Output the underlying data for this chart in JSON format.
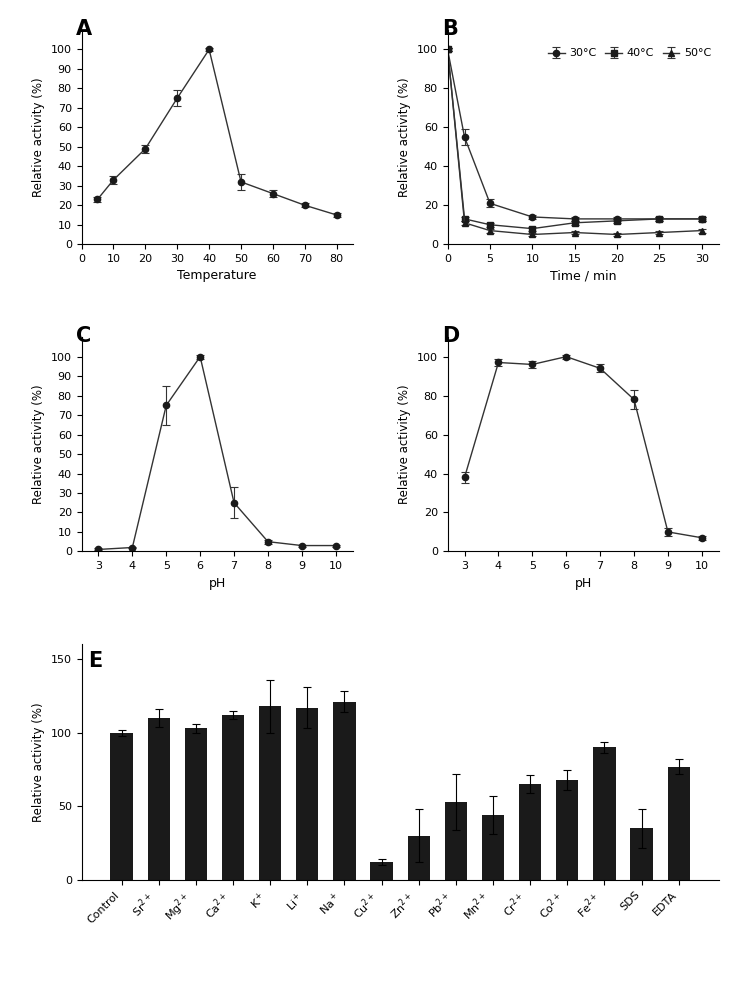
{
  "A": {
    "x": [
      5,
      10,
      20,
      30,
      40,
      50,
      60,
      70,
      80
    ],
    "y": [
      23,
      33,
      49,
      75,
      100,
      32,
      26,
      20,
      15
    ],
    "yerr": [
      1.5,
      2,
      2,
      4,
      1,
      4,
      2,
      1,
      1
    ],
    "xlabel": "Temperature",
    "ylabel": "Relative activity (%)",
    "xlim": [
      0,
      85
    ],
    "ylim": [
      0,
      110
    ],
    "xticks": [
      0,
      10,
      20,
      30,
      40,
      50,
      60,
      70,
      80
    ],
    "yticks": [
      0,
      10,
      20,
      30,
      40,
      50,
      60,
      70,
      80,
      90,
      100
    ],
    "label": "A"
  },
  "B": {
    "series": {
      "30C": {
        "x": [
          0,
          2,
          5,
          10,
          15,
          20,
          25,
          30
        ],
        "y": [
          100,
          55,
          21,
          14,
          13,
          13,
          13,
          13
        ],
        "yerr": [
          1,
          4,
          2,
          1,
          1,
          1,
          1,
          1
        ],
        "marker": "o",
        "label": "30°C"
      },
      "40C": {
        "x": [
          0,
          2,
          5,
          10,
          15,
          20,
          25,
          30
        ],
        "y": [
          100,
          13,
          10,
          8,
          11,
          12,
          13,
          13
        ],
        "yerr": [
          1,
          1,
          1,
          1,
          1,
          1,
          1,
          1
        ],
        "marker": "s",
        "label": "40°C"
      },
      "50C": {
        "x": [
          0,
          2,
          5,
          10,
          15,
          20,
          25,
          30
        ],
        "y": [
          100,
          11,
          7,
          5,
          6,
          5,
          6,
          7
        ],
        "yerr": [
          1,
          1,
          1,
          1,
          1,
          1,
          1,
          1
        ],
        "marker": "^",
        "label": "50°C"
      }
    },
    "xlabel": "Time / min",
    "ylabel": "Relative activity (%)",
    "xlim": [
      0,
      32
    ],
    "ylim": [
      0,
      110
    ],
    "xticks": [
      0,
      5,
      10,
      15,
      20,
      25,
      30
    ],
    "yticks": [
      0,
      20,
      40,
      60,
      80,
      100
    ],
    "label": "B"
  },
  "C": {
    "x": [
      3,
      4,
      5,
      6,
      7,
      8,
      9,
      10
    ],
    "y": [
      1,
      2,
      75,
      100,
      25,
      5,
      3,
      3
    ],
    "yerr": [
      0.5,
      0.5,
      10,
      1,
      8,
      1,
      0.5,
      0.5
    ],
    "xlabel": "pH",
    "ylabel": "Relative activity (%)",
    "xlim": [
      2.5,
      10.5
    ],
    "ylim": [
      0,
      110
    ],
    "xticks": [
      3,
      4,
      5,
      6,
      7,
      8,
      9,
      10
    ],
    "yticks": [
      0,
      10,
      20,
      30,
      40,
      50,
      60,
      70,
      80,
      90,
      100
    ],
    "label": "C"
  },
  "D": {
    "x": [
      3,
      4,
      5,
      6,
      7,
      8,
      9,
      10
    ],
    "y": [
      38,
      97,
      96,
      100,
      94,
      78,
      10,
      7
    ],
    "yerr": [
      3,
      2,
      2,
      1,
      2,
      5,
      2,
      1
    ],
    "xlabel": "pH",
    "ylabel": "Relative activity (%)",
    "xlim": [
      2.5,
      10.5
    ],
    "ylim": [
      0,
      110
    ],
    "xticks": [
      3,
      4,
      5,
      6,
      7,
      8,
      9,
      10
    ],
    "yticks": [
      0,
      20,
      40,
      60,
      80,
      100
    ],
    "label": "D"
  },
  "E": {
    "categories": [
      "Control",
      "Sr$^{2+}$",
      "Mg$^{2+}$",
      "Ca$^{2+}$",
      "K$^+$",
      "Li$^+$",
      "Na$^+$",
      "Cu$^{2+}$",
      "Zn$^{2+}$",
      "Pb$^{2+}$",
      "Mn$^{2+}$",
      "Cr$^{2+}$",
      "Co$^{2+}$",
      "Fe$^{2+}$",
      "SDS",
      "EDTA"
    ],
    "values": [
      100,
      110,
      103,
      112,
      118,
      117,
      121,
      12,
      30,
      53,
      44,
      65,
      68,
      90,
      35,
      77
    ],
    "yerr": [
      2,
      6,
      3,
      3,
      18,
      14,
      7,
      2,
      18,
      19,
      13,
      6,
      7,
      4,
      13,
      5
    ],
    "bar_color": "#1a1a1a",
    "ylabel": "Relative activity (%)",
    "ylim": [
      0,
      160
    ],
    "yticks": [
      0,
      50,
      100,
      150
    ],
    "label": "E"
  },
  "line_color": "#333333",
  "marker_color": "#1a1a1a",
  "bg_color": "#ffffff"
}
